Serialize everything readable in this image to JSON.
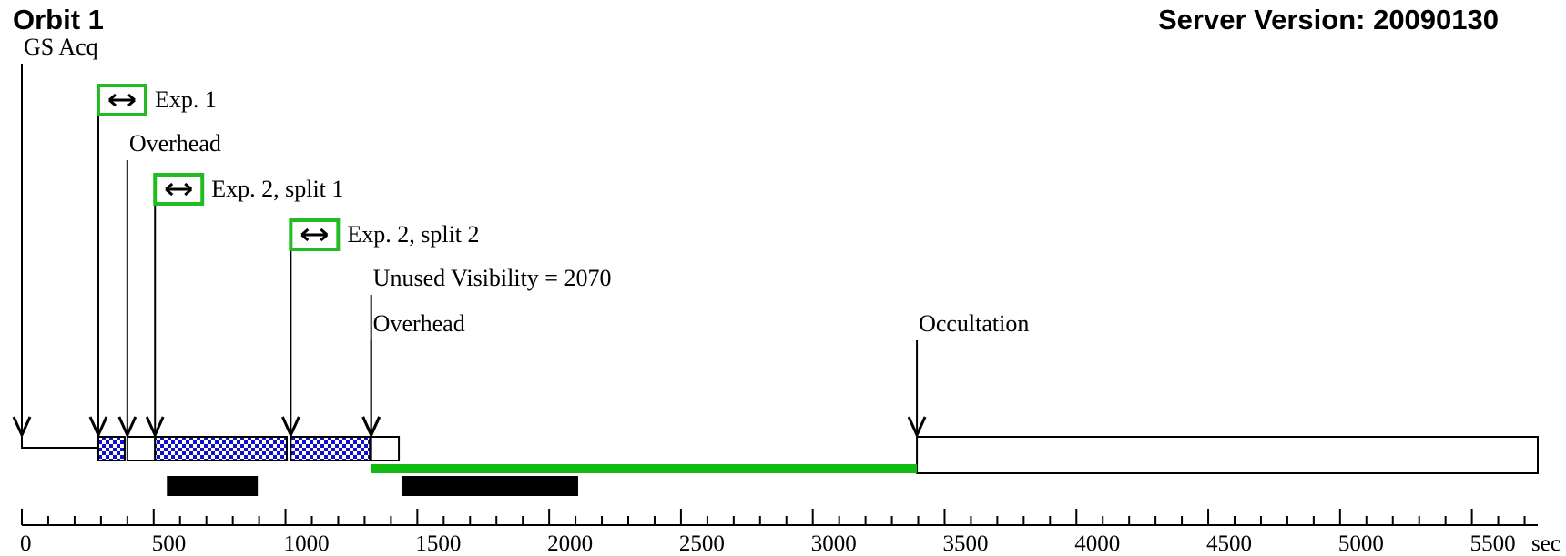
{
  "header": {
    "title": "Orbit 1",
    "server_version": "Server Version: 20090130"
  },
  "colors": {
    "exposure_fill": "#1111cc",
    "exposure_marker_border": "#22bb22",
    "unused_visibility": "#11bb11",
    "bar": "#000000"
  },
  "icons": {
    "exposure_marker": "double-arrow-icon"
  },
  "chart_data": {
    "type": "timeline",
    "x_unit_label": "sec",
    "xlim": [
      0,
      5750
    ],
    "x_ticks": [
      0,
      500,
      1000,
      1500,
      2000,
      2500,
      3000,
      3500,
      4000,
      4500,
      5000,
      5500
    ],
    "x_tick_labels": [
      "0",
      "500",
      "1000",
      "1500",
      "2000",
      "2500",
      "3000",
      "3500",
      "4000",
      "4500",
      "5000",
      "5500"
    ],
    "minor_tick_step": 100,
    "events": [
      {
        "label": "GS Acq",
        "time": 0,
        "exposure": false
      },
      {
        "label": "Exp. 1",
        "time": 290,
        "exposure": true
      },
      {
        "label": "Overhead",
        "time": 400,
        "exposure": false
      },
      {
        "label": "Exp. 2, split 1",
        "time": 505,
        "exposure": true
      },
      {
        "label": "Exp. 2, split 2",
        "time": 1020,
        "exposure": true
      },
      {
        "label": "Unused Visibility = 2070",
        "time": 1325,
        "exposure": false
      },
      {
        "label": "Overhead",
        "time": 1325,
        "exposure": false
      },
      {
        "label": "Occultation",
        "time": 3395,
        "exposure": false
      }
    ],
    "segments": [
      {
        "kind": "acquisition",
        "start": 0,
        "end": 290
      },
      {
        "kind": "exposure",
        "start": 290,
        "end": 390
      },
      {
        "kind": "overhead",
        "start": 400,
        "end": 505
      },
      {
        "kind": "exposure",
        "start": 505,
        "end": 1005
      },
      {
        "kind": "exposure",
        "start": 1020,
        "end": 1320
      },
      {
        "kind": "overhead",
        "start": 1325,
        "end": 1430
      },
      {
        "kind": "occultation",
        "start": 3395,
        "end": 5750
      }
    ],
    "unused_visibility": {
      "start": 1325,
      "end": 3395,
      "value": 2070
    },
    "bars": [
      {
        "start": 550,
        "end": 895
      },
      {
        "start": 1440,
        "end": 2110
      }
    ]
  }
}
